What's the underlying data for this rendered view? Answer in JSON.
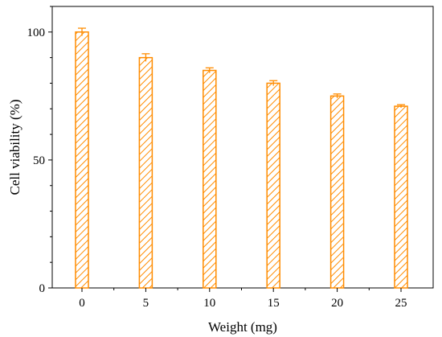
{
  "chart_data": {
    "type": "bar",
    "xlabel": "Weight (mg)",
    "ylabel": "Cell viability (%)",
    "categories": [
      "0",
      "5",
      "10",
      "15",
      "20",
      "25"
    ],
    "values": [
      100,
      90,
      85,
      80,
      75,
      71
    ],
    "errors": [
      1.5,
      1.5,
      1.0,
      1.0,
      0.8,
      0.6
    ],
    "ylim": [
      0,
      110
    ],
    "yticks": [
      "0",
      "50",
      "100"
    ],
    "grid": false,
    "bar_color": "#FF8C00",
    "bar_pattern": "diagonal-hatch"
  }
}
